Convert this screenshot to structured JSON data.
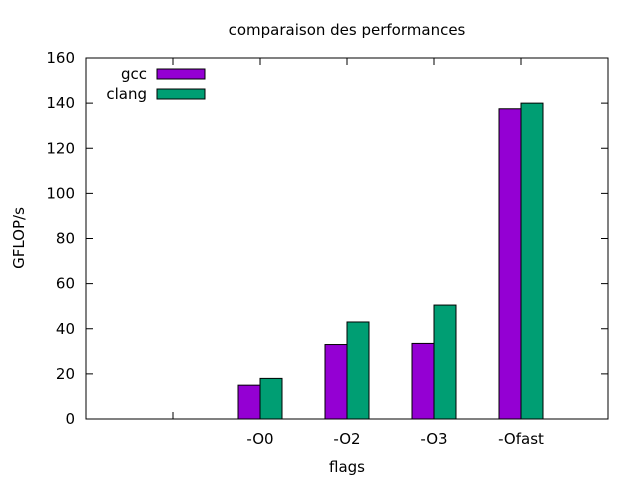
{
  "chart_data": {
    "type": "bar",
    "title": "comparaison des performances",
    "xlabel": "flags",
    "ylabel": "GFLOP/s",
    "ylim": [
      0,
      160
    ],
    "yticks": [
      0,
      20,
      40,
      60,
      80,
      100,
      120,
      140,
      160
    ],
    "categories": [
      "",
      "-O0",
      "-O2",
      "-O3",
      "-Ofast"
    ],
    "series": [
      {
        "name": "gcc",
        "color": "#9400d3",
        "values": [
          null,
          15,
          33,
          33.5,
          137.5
        ]
      },
      {
        "name": "clang",
        "color": "#009e73",
        "values": [
          null,
          18,
          43,
          50.5,
          140
        ]
      }
    ],
    "legend": "top-left",
    "grid": false
  }
}
